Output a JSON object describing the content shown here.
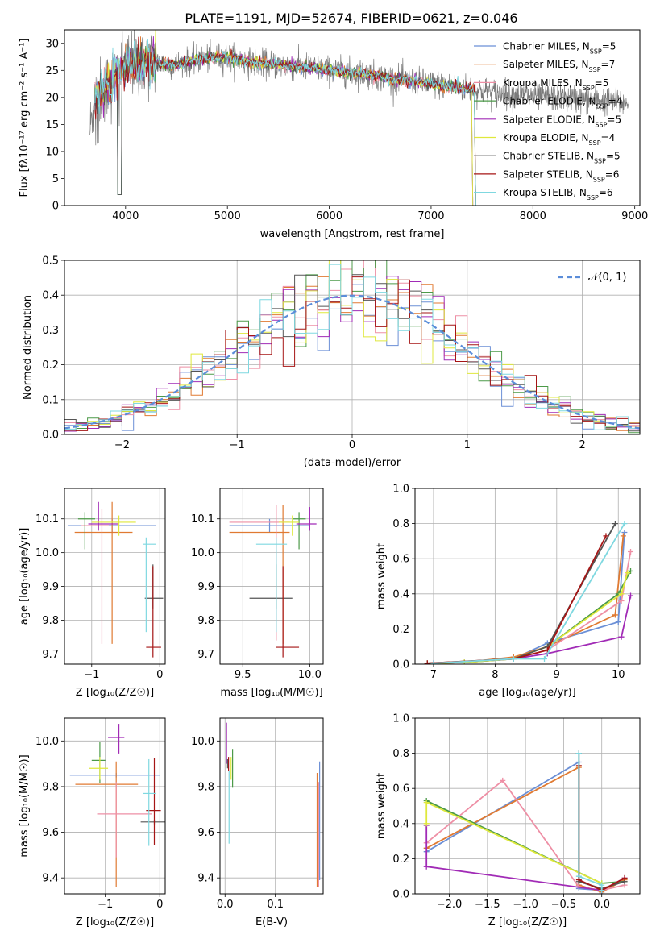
{
  "figure_title": "PLATE=1191, MJD=52674, FIBERID=0621, z=0.046",
  "models": [
    {
      "name": "Chabrier MILES",
      "nssp": 5,
      "color": "#6b8fd6"
    },
    {
      "name": "Salpeter MILES",
      "nssp": 7,
      "color": "#e07a32"
    },
    {
      "name": "Kroupa MILES",
      "nssp": 5,
      "color": "#ee8fa5"
    },
    {
      "name": "Chabrier ELODIE",
      "nssp": 4,
      "color": "#4c9a48"
    },
    {
      "name": "Salpeter ELODIE",
      "nssp": 5,
      "color": "#a12bb6"
    },
    {
      "name": "Kroupa ELODIE",
      "nssp": 4,
      "color": "#dfe83c"
    },
    {
      "name": "Chabrier STELIB",
      "nssp": 5,
      "color": "#555555"
    },
    {
      "name": "Salpeter STELIB",
      "nssp": 6,
      "color": "#a51515"
    },
    {
      "name": "Kroupa STELIB",
      "nssp": 6,
      "color": "#7fd8e0"
    }
  ],
  "chart_data": [
    {
      "id": "spectrum",
      "type": "line",
      "xlabel": "wavelength [Angstrom, rest frame]",
      "ylabel": "Flux [fλ10⁻¹⁷ erg cm⁻² s⁻¹ A⁻¹]",
      "xlim": [
        3400,
        9050
      ],
      "ylim": [
        0,
        32.5
      ],
      "xticks": [
        4000,
        5000,
        6000,
        7000,
        8000,
        9000
      ],
      "yticks": [
        0,
        5,
        10,
        15,
        20,
        25,
        30
      ],
      "legend_entries": [
        "Chabrier MILES, N_SSP=5",
        "Salpeter MILES, N_SSP=7",
        "Kroupa MILES, N_SSP=5",
        "Chabrier ELODIE, N_SSP=4",
        "Salpeter ELODIE, N_SSP=5",
        "Kroupa ELODIE, N_SSP=4",
        "Chabrier STELIB, N_SSP=5",
        "Salpeter STELIB, N_SSP=6",
        "Kroupa STELIB, N_SSP=6"
      ],
      "legend_position": "upper-right",
      "data_range": [
        3650,
        8950
      ],
      "continuum": [
        [
          3650,
          14
        ],
        [
          3700,
          20
        ],
        [
          3800,
          22
        ],
        [
          3900,
          24
        ],
        [
          4000,
          26
        ],
        [
          4200,
          26.5
        ],
        [
          4500,
          26
        ],
        [
          4700,
          27
        ],
        [
          5000,
          27.5
        ],
        [
          5200,
          26.5
        ],
        [
          5500,
          26
        ],
        [
          5800,
          25.5
        ],
        [
          6000,
          25
        ],
        [
          6300,
          24.5
        ],
        [
          6600,
          23.5
        ],
        [
          7000,
          22.5
        ],
        [
          7400,
          21.5
        ],
        [
          7800,
          20.5
        ],
        [
          8200,
          20
        ],
        [
          8600,
          19.5
        ],
        [
          8950,
          19
        ]
      ],
      "model_end": [
        7400,
        7430,
        7430,
        7430,
        7400,
        7400,
        7430,
        7430,
        7430
      ]
    },
    {
      "id": "residual-hist",
      "type": "step",
      "xlabel": "(data-model)/error",
      "ylabel": "Normed distribution",
      "xlim": [
        -2.5,
        2.5
      ],
      "ylim": [
        0,
        0.5
      ],
      "xticks": [
        -2,
        -1,
        0,
        1,
        2
      ],
      "yticks": [
        0,
        0.1,
        0.2,
        0.3,
        0.4,
        0.5
      ],
      "bin_width": 0.1,
      "legend": "𝒩(0, 1)",
      "reference": {
        "name": "N(0,1)",
        "mean": 0,
        "sigma": 1,
        "color": "#5b8dd9"
      }
    },
    {
      "id": "age-vs-Z",
      "type": "errorbar",
      "xlabel": "Z [log₁₀(Z/Z☉)]",
      "ylabel": "age  [log₁₀(age/yr)]",
      "xlim": [
        -1.4,
        0.08
      ],
      "ylim": [
        9.67,
        10.19
      ],
      "xticks": [
        -1,
        0
      ],
      "yticks": [
        9.7,
        9.8,
        9.9,
        10.0,
        10.1
      ],
      "points": [
        {
          "x": -0.7,
          "y": 10.08,
          "xerr": [
            0.65,
            0.65
          ],
          "yerr": [
            0.02,
            0.02
          ],
          "model": 0
        },
        {
          "x": -0.7,
          "y": 10.06,
          "xerr": [
            0.55,
            0.3
          ],
          "yerr": [
            0.33,
            0.09
          ],
          "model": 1
        },
        {
          "x": -0.85,
          "y": 10.08,
          "xerr": [
            0.3,
            0.1
          ],
          "yerr": [
            0.35,
            0.05
          ],
          "model": 2
        },
        {
          "x": -1.1,
          "y": 10.1,
          "xerr": [
            0.1,
            0.15
          ],
          "yerr": [
            0.09,
            0.02
          ],
          "model": 3
        },
        {
          "x": -0.9,
          "y": 10.085,
          "xerr": [
            0.15,
            0.3
          ],
          "yerr": [
            0.02,
            0.065
          ],
          "model": 4
        },
        {
          "x": -0.6,
          "y": 10.09,
          "xerr": [
            0.4,
            0.25
          ],
          "yerr": [
            0.04,
            0.02
          ],
          "model": 5
        },
        {
          "x": -0.1,
          "y": 9.865,
          "xerr": [
            0.12,
            0.15
          ],
          "yerr": [
            0.03,
            0.1
          ],
          "model": 6
        },
        {
          "x": -0.1,
          "y": 9.72,
          "xerr": [
            0.1,
            0.12
          ],
          "yerr": [
            0.03,
            0.24
          ],
          "model": 7
        },
        {
          "x": -0.2,
          "y": 10.025,
          "xerr": [
            0.05,
            0.15
          ],
          "yerr": [
            0.26,
            0.02
          ],
          "model": 8
        }
      ]
    },
    {
      "id": "age-vs-mass",
      "type": "errorbar",
      "xlabel": "mass [log₁₀(M/M☉)]",
      "ylabel": "",
      "xlim": [
        9.33,
        10.1
      ],
      "ylim": [
        9.67,
        10.19
      ],
      "xticks": [
        9.5,
        10.0
      ],
      "yticks": [
        9.7,
        9.8,
        9.9,
        10.0,
        10.1
      ],
      "points": [
        {
          "x": 9.7,
          "y": 10.08,
          "xerr": [
            0.3,
            0.3
          ],
          "yerr": [
            0.02,
            0.02
          ],
          "model": 0
        },
        {
          "x": 9.8,
          "y": 10.06,
          "xerr": [
            0.4,
            0.05
          ],
          "yerr": [
            0.33,
            0.08
          ],
          "model": 1
        },
        {
          "x": 9.75,
          "y": 10.09,
          "xerr": [
            0.35,
            0.1
          ],
          "yerr": [
            0.35,
            0.05
          ],
          "model": 2
        },
        {
          "x": 9.92,
          "y": 10.1,
          "xerr": [
            0.05,
            0.05
          ],
          "yerr": [
            0.09,
            0.02
          ],
          "model": 3
        },
        {
          "x": 10.0,
          "y": 10.085,
          "xerr": [
            0.1,
            0.05
          ],
          "yerr": [
            0.02,
            0.05
          ],
          "model": 4
        },
        {
          "x": 9.87,
          "y": 10.09,
          "xerr": [
            0.1,
            0.05
          ],
          "yerr": [
            0.04,
            0.02
          ],
          "model": 5
        },
        {
          "x": 9.75,
          "y": 9.865,
          "xerr": [
            0.2,
            0.12
          ],
          "yerr": [
            0.03,
            0.1
          ],
          "model": 6
        },
        {
          "x": 9.8,
          "y": 9.72,
          "xerr": [
            0.05,
            0.12
          ],
          "yerr": [
            0.03,
            0.24
          ],
          "model": 7
        },
        {
          "x": 9.75,
          "y": 10.025,
          "xerr": [
            0.15,
            0.08
          ],
          "yerr": [
            0.26,
            0.02
          ],
          "model": 8
        }
      ]
    },
    {
      "id": "weight-vs-age",
      "type": "line",
      "xlabel": "age  [log₁₀(age/yr)]",
      "ylabel": "mass weight",
      "xlim": [
        6.7,
        10.35
      ],
      "ylim": [
        0,
        1.0
      ],
      "xticks": [
        7,
        8,
        9,
        10
      ],
      "yticks": [
        0,
        0.2,
        0.4,
        0.6,
        0.8,
        1.0
      ],
      "series": [
        {
          "model": 0,
          "x": [
            6.9,
            7.5,
            8.3,
            8.85,
            10.0,
            10.1
          ],
          "y": [
            0.005,
            0.01,
            0.03,
            0.12,
            0.24,
            0.75
          ]
        },
        {
          "model": 1,
          "x": [
            6.9,
            7.5,
            8.3,
            8.85,
            9.95,
            10.08
          ],
          "y": [
            0.005,
            0.01,
            0.04,
            0.1,
            0.28,
            0.73
          ]
        },
        {
          "model": 2,
          "x": [
            6.9,
            7.5,
            8.3,
            8.85,
            10.05,
            10.2
          ],
          "y": [
            0.005,
            0.01,
            0.03,
            0.08,
            0.36,
            0.64
          ]
        },
        {
          "model": 3,
          "x": [
            6.9,
            7.5,
            8.3,
            8.85,
            10.0,
            10.2
          ],
          "y": [
            0.005,
            0.01,
            0.03,
            0.1,
            0.4,
            0.53
          ]
        },
        {
          "model": 4,
          "x": [
            7.0,
            8.3,
            8.85,
            10.05,
            10.2
          ],
          "y": [
            0.005,
            0.03,
            0.06,
            0.155,
            0.39
          ]
        },
        {
          "model": 5,
          "x": [
            6.9,
            7.5,
            8.3,
            8.85,
            10.05,
            10.15
          ],
          "y": [
            0.005,
            0.01,
            0.03,
            0.1,
            0.4,
            0.52
          ]
        },
        {
          "model": 6,
          "x": [
            6.9,
            8.3,
            8.85,
            9.95
          ],
          "y": [
            0.005,
            0.03,
            0.1,
            0.8
          ]
        },
        {
          "model": 7,
          "x": [
            6.9,
            8.3,
            8.85,
            9.8
          ],
          "y": [
            0.005,
            0.03,
            0.08,
            0.73
          ]
        },
        {
          "model": 8,
          "x": [
            7.0,
            8.3,
            8.8,
            10.1
          ],
          "y": [
            0.005,
            0.03,
            0.03,
            0.8
          ]
        }
      ]
    },
    {
      "id": "mass-vs-Z",
      "type": "errorbar",
      "xlabel": "Z [log₁₀(Z/Z☉)]",
      "ylabel": "mass [log₁₀(M/M☉)]",
      "xlim": [
        -1.75,
        0.1
      ],
      "ylim": [
        9.33,
        10.1
      ],
      "xticks": [
        -1,
        0
      ],
      "yticks": [
        9.4,
        9.6,
        9.8,
        10.0
      ],
      "points": [
        {
          "x": -0.8,
          "y": 9.85,
          "xerr": [
            0.85,
            0.8
          ],
          "yerr": [
            0.01,
            0.01
          ],
          "model": 0
        },
        {
          "x": -0.8,
          "y": 9.81,
          "xerr": [
            0.75,
            0.4
          ],
          "yerr": [
            0.45,
            0.1
          ],
          "model": 1
        },
        {
          "x": -0.8,
          "y": 9.68,
          "xerr": [
            0.35,
            0.65
          ],
          "yerr": [
            0.19,
            0.14
          ],
          "model": 2
        },
        {
          "x": -1.1,
          "y": 9.915,
          "xerr": [
            0.15,
            0.1
          ],
          "yerr": [
            0.1,
            0.08
          ],
          "model": 3
        },
        {
          "x": -0.75,
          "y": 10.015,
          "xerr": [
            0.2,
            0.1
          ],
          "yerr": [
            0.07,
            0.06
          ],
          "model": 4
        },
        {
          "x": -1.1,
          "y": 9.88,
          "xerr": [
            0.2,
            0.15
          ],
          "yerr": [
            0.05,
            0.05
          ],
          "model": 5
        },
        {
          "x": -0.1,
          "y": 9.645,
          "xerr": [
            0.25,
            0.2
          ],
          "yerr": [
            0.01,
            0.01
          ],
          "model": 6
        },
        {
          "x": -0.1,
          "y": 9.695,
          "xerr": [
            0.15,
            0.12
          ],
          "yerr": [
            0.15,
            0.23
          ],
          "model": 7
        },
        {
          "x": -0.2,
          "y": 9.77,
          "xerr": [
            0.1,
            0.12
          ],
          "yerr": [
            0.23,
            0.15
          ],
          "model": 8
        }
      ]
    },
    {
      "id": "mass-vs-EBV",
      "type": "errorbar",
      "xlabel": "E(B-V)",
      "ylabel": "",
      "xlim": [
        -0.01,
        0.195
      ],
      "ylim": [
        9.33,
        10.1
      ],
      "xticks": [
        0.0,
        0.1
      ],
      "yticks": [
        9.4,
        9.6,
        9.8,
        10.0
      ],
      "points": [
        {
          "x": 0.188,
          "y": 9.85,
          "xerr": [
            0,
            0
          ],
          "yerr": [
            0.46,
            0.06
          ],
          "model": 0
        },
        {
          "x": 0.183,
          "y": 9.81,
          "xerr": [
            0,
            0
          ],
          "yerr": [
            0.45,
            0.05
          ],
          "model": 1
        },
        {
          "x": 0.186,
          "y": 9.68,
          "xerr": [
            0,
            0
          ],
          "yerr": [
            0.32,
            0.14
          ],
          "model": 2
        },
        {
          "x": 0.015,
          "y": 9.915,
          "xerr": [
            0,
            0
          ],
          "yerr": [
            0.12,
            0.05
          ],
          "model": 3
        },
        {
          "x": 0.003,
          "y": 10.0,
          "xerr": [
            0,
            0
          ],
          "yerr": [
            0.1,
            0.08
          ],
          "model": 4
        },
        {
          "x": 0.012,
          "y": 9.88,
          "xerr": [
            0,
            0
          ],
          "yerr": [
            0.05,
            0.05
          ],
          "model": 5
        },
        {
          "x": 0.005,
          "y": 9.9,
          "xerr": [
            0,
            0
          ],
          "yerr": [
            0.02,
            0.02
          ],
          "model": 6
        },
        {
          "x": 0.007,
          "y": 9.9,
          "xerr": [
            0,
            0
          ],
          "yerr": [
            0.03,
            0.03
          ],
          "model": 7
        },
        {
          "x": 0.008,
          "y": 9.77,
          "xerr": [
            0,
            0
          ],
          "yerr": [
            0.22,
            0.1
          ],
          "model": 8
        }
      ]
    },
    {
      "id": "weight-vs-Z",
      "type": "line",
      "xlabel": "Z [log₁₀(Z/Z☉)]",
      "ylabel": "mass weight",
      "xlim": [
        -2.45,
        0.5
      ],
      "ylim": [
        0,
        1.0
      ],
      "xticks": [
        -2.0,
        -1.5,
        -1.0,
        -0.5,
        0.0
      ],
      "yticks": [
        0,
        0.2,
        0.4,
        0.6,
        0.8,
        1.0
      ],
      "series": [
        {
          "model": 0,
          "x": [
            -2.3,
            -0.3,
            -0.3,
            0.0,
            0.0
          ],
          "y": [
            0.24,
            0.75,
            0.03,
            0.02,
            0.0
          ]
        },
        {
          "model": 1,
          "x": [
            -2.3,
            -0.3,
            -0.3,
            0.0,
            0.3
          ],
          "y": [
            0.26,
            0.72,
            0.05,
            0.01,
            0.08
          ]
        },
        {
          "model": 2,
          "x": [
            -2.3,
            -1.3,
            -0.3,
            0.0,
            0.3
          ],
          "y": [
            0.29,
            0.645,
            0.04,
            0.02,
            0.05
          ]
        },
        {
          "model": 3,
          "x": [
            -2.3,
            0.0,
            0.3
          ],
          "y": [
            0.53,
            0.06,
            0.07
          ]
        },
        {
          "model": 4,
          "x": [
            -2.3,
            -2.3,
            0.0,
            0.3
          ],
          "y": [
            0.39,
            0.155,
            0.02,
            0.09
          ]
        },
        {
          "model": 5,
          "x": [
            -2.3,
            -2.3,
            0.0
          ],
          "y": [
            0.4,
            0.52,
            0.06
          ]
        },
        {
          "model": 6,
          "x": [
            -0.3,
            -0.3,
            0.0,
            0.3
          ],
          "y": [
            0.8,
            0.07,
            0.03,
            0.07
          ]
        },
        {
          "model": 7,
          "x": [
            -0.3,
            -0.3,
            0.0,
            0.3
          ],
          "y": [
            0.73,
            0.08,
            0.02,
            0.09
          ]
        },
        {
          "model": 8,
          "x": [
            -0.3,
            -0.3,
            0.0,
            0.0
          ],
          "y": [
            0.8,
            0.1,
            0.05,
            0.02
          ]
        }
      ]
    }
  ]
}
